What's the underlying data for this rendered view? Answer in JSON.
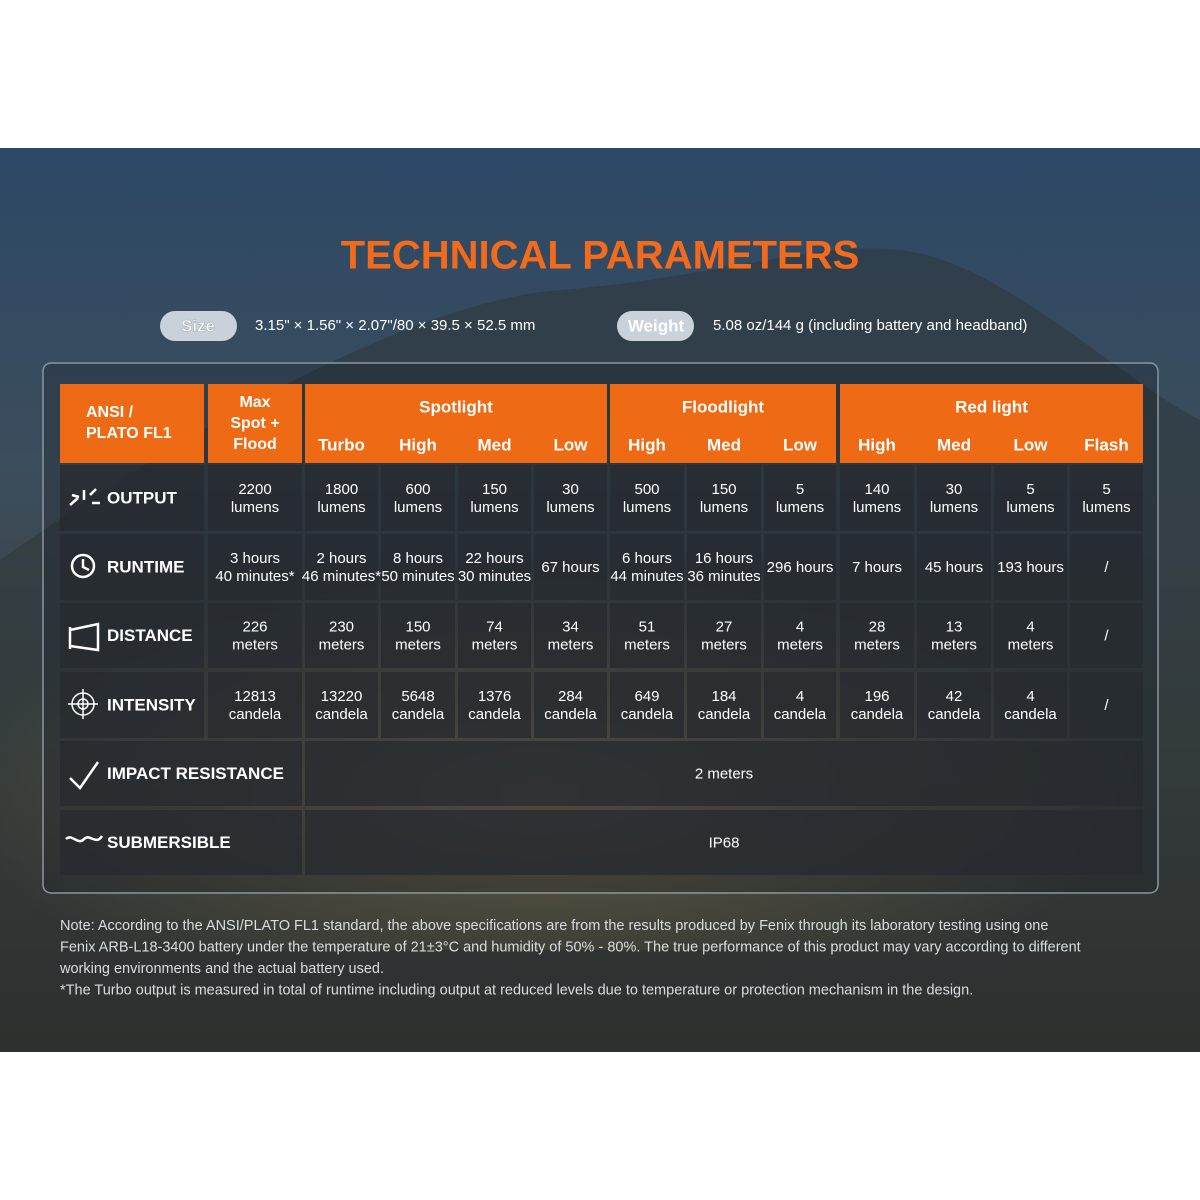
{
  "title": "TECHNICAL PARAMETERS",
  "specs": [
    {
      "label": "Size",
      "value": "3.15\" × 1.56\" × 2.07\"/80 × 39.5 × 52.5 mm"
    },
    {
      "label": "Weight",
      "value": "5.08 oz/144 g (including battery and headband)"
    }
  ],
  "table": {
    "corner": [
      "ANSI /",
      "PLATO FL1"
    ],
    "max_header": [
      "Max",
      "Spot +",
      "Flood"
    ],
    "groups": [
      {
        "name": "Spotlight",
        "modes": [
          "Turbo",
          "High",
          "Med",
          "Low"
        ]
      },
      {
        "name": "Floodlight",
        "modes": [
          "High",
          "Med",
          "Low"
        ]
      },
      {
        "name": "Red light",
        "modes": [
          "High",
          "Med",
          "Low",
          "Flash"
        ]
      }
    ],
    "rows": [
      {
        "label": "OUTPUT",
        "cells": [
          [
            "2200",
            "lumens"
          ],
          [
            "1800",
            "lumens"
          ],
          [
            "600",
            "lumens"
          ],
          [
            "150",
            "lumens"
          ],
          [
            "30",
            "lumens"
          ],
          [
            "500",
            "lumens"
          ],
          [
            "150",
            "lumens"
          ],
          [
            "5",
            "lumens"
          ],
          [
            "140",
            "lumens"
          ],
          [
            "30",
            "lumens"
          ],
          [
            "5",
            "lumens"
          ],
          [
            "5",
            "lumens"
          ]
        ]
      },
      {
        "label": "RUNTIME",
        "cells": [
          [
            "3 hours",
            "40 minutes*"
          ],
          [
            "2 hours",
            "46 minutes*"
          ],
          [
            "8 hours",
            "50 minutes"
          ],
          [
            "22 hours",
            "30 minutes"
          ],
          [
            "67 hours"
          ],
          [
            "6 hours",
            "44 minutes"
          ],
          [
            "16 hours",
            "36 minutes"
          ],
          [
            "296 hours"
          ],
          [
            "7 hours"
          ],
          [
            "45 hours"
          ],
          [
            "193 hours"
          ],
          [
            "/"
          ]
        ]
      },
      {
        "label": "DISTANCE",
        "cells": [
          [
            "226",
            "meters"
          ],
          [
            "230",
            "meters"
          ],
          [
            "150",
            "meters"
          ],
          [
            "74",
            "meters"
          ],
          [
            "34",
            "meters"
          ],
          [
            "51",
            "meters"
          ],
          [
            "27",
            "meters"
          ],
          [
            "4",
            "meters"
          ],
          [
            "28",
            "meters"
          ],
          [
            "13",
            "meters"
          ],
          [
            "4",
            "meters"
          ],
          [
            "/"
          ]
        ]
      },
      {
        "label": "INTENSITY",
        "cells": [
          [
            "12813",
            "candela"
          ],
          [
            "13220",
            "candela"
          ],
          [
            "5648",
            "candela"
          ],
          [
            "1376",
            "candela"
          ],
          [
            "284",
            "candela"
          ],
          [
            "649",
            "candela"
          ],
          [
            "184",
            "candela"
          ],
          [
            "4",
            "candela"
          ],
          [
            "196",
            "candela"
          ],
          [
            "42",
            "candela"
          ],
          [
            "4",
            "candela"
          ],
          [
            "/"
          ]
        ]
      },
      {
        "label": "IMPACT RESISTANCE",
        "value": "2 meters"
      },
      {
        "label": "SUBMERSIBLE",
        "value": "IP68"
      }
    ]
  },
  "notes": [
    "Note: According to the ANSI/PLATO FL1 standard, the above specifications are from the results produced by Fenix through its laboratory testing using one",
    "Fenix ARB-L18-3400 battery under the temperature of 21±3°C and humidity of 50% - 80%. The true performance of this product may vary according to different",
    "working environments and the actual battery used.",
    "*The Turbo output is measured in total of runtime including output at reduced levels due to temperature or protection mechanism in the design."
  ]
}
